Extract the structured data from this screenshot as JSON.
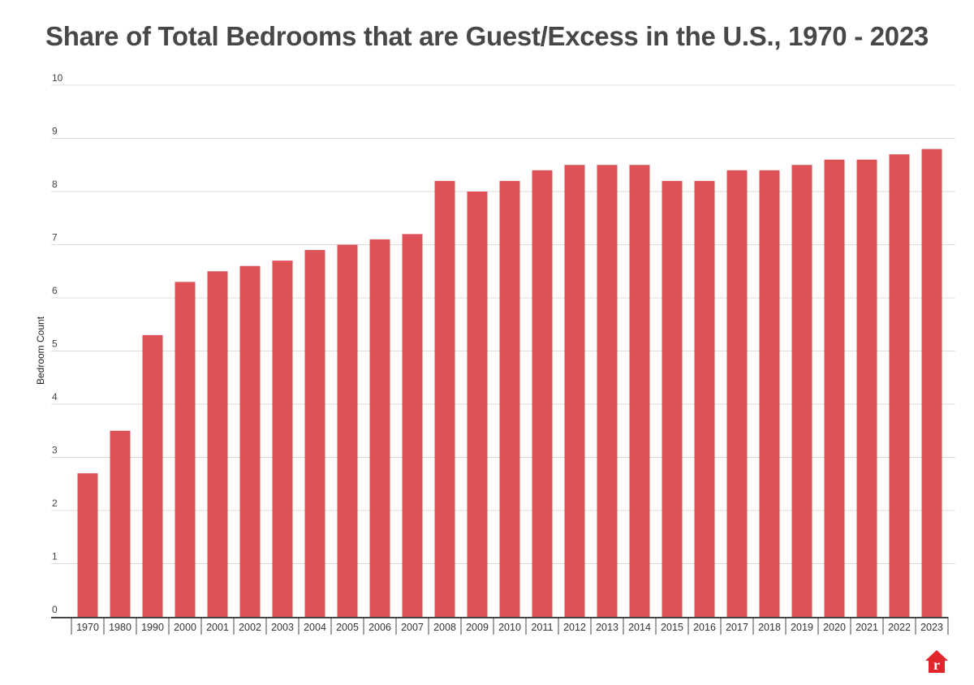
{
  "chart_data": {
    "type": "bar",
    "title": "Share of Total Bedrooms that are Guest/Excess in the U.S., 1970 - 2023",
    "xlabel": "",
    "ylabel": "Bedroom Count",
    "ylim": [
      0,
      10
    ],
    "yticks": [
      0,
      1,
      2,
      3,
      4,
      5,
      6,
      7,
      8,
      9,
      10
    ],
    "grid": true,
    "legend": "none",
    "bar_color": "#dc5256",
    "categories": [
      "1970",
      "1980",
      "1990",
      "2000",
      "2001",
      "2002",
      "2003",
      "2004",
      "2005",
      "2006",
      "2007",
      "2008",
      "2009",
      "2010",
      "2011",
      "2012",
      "2013",
      "2014",
      "2015",
      "2016",
      "2017",
      "2018",
      "2019",
      "2020",
      "2021",
      "2022",
      "2023"
    ],
    "values": [
      2.7,
      3.5,
      5.3,
      6.3,
      6.5,
      6.6,
      6.7,
      6.9,
      7.0,
      7.1,
      7.2,
      8.2,
      8.0,
      8.2,
      8.4,
      8.5,
      8.5,
      8.5,
      8.2,
      8.2,
      8.4,
      8.4,
      8.5,
      8.6,
      8.6,
      8.7,
      8.8
    ]
  },
  "branding": {
    "logo": "house-r-logo",
    "logo_letter": "r",
    "logo_color": "#e0262a"
  }
}
